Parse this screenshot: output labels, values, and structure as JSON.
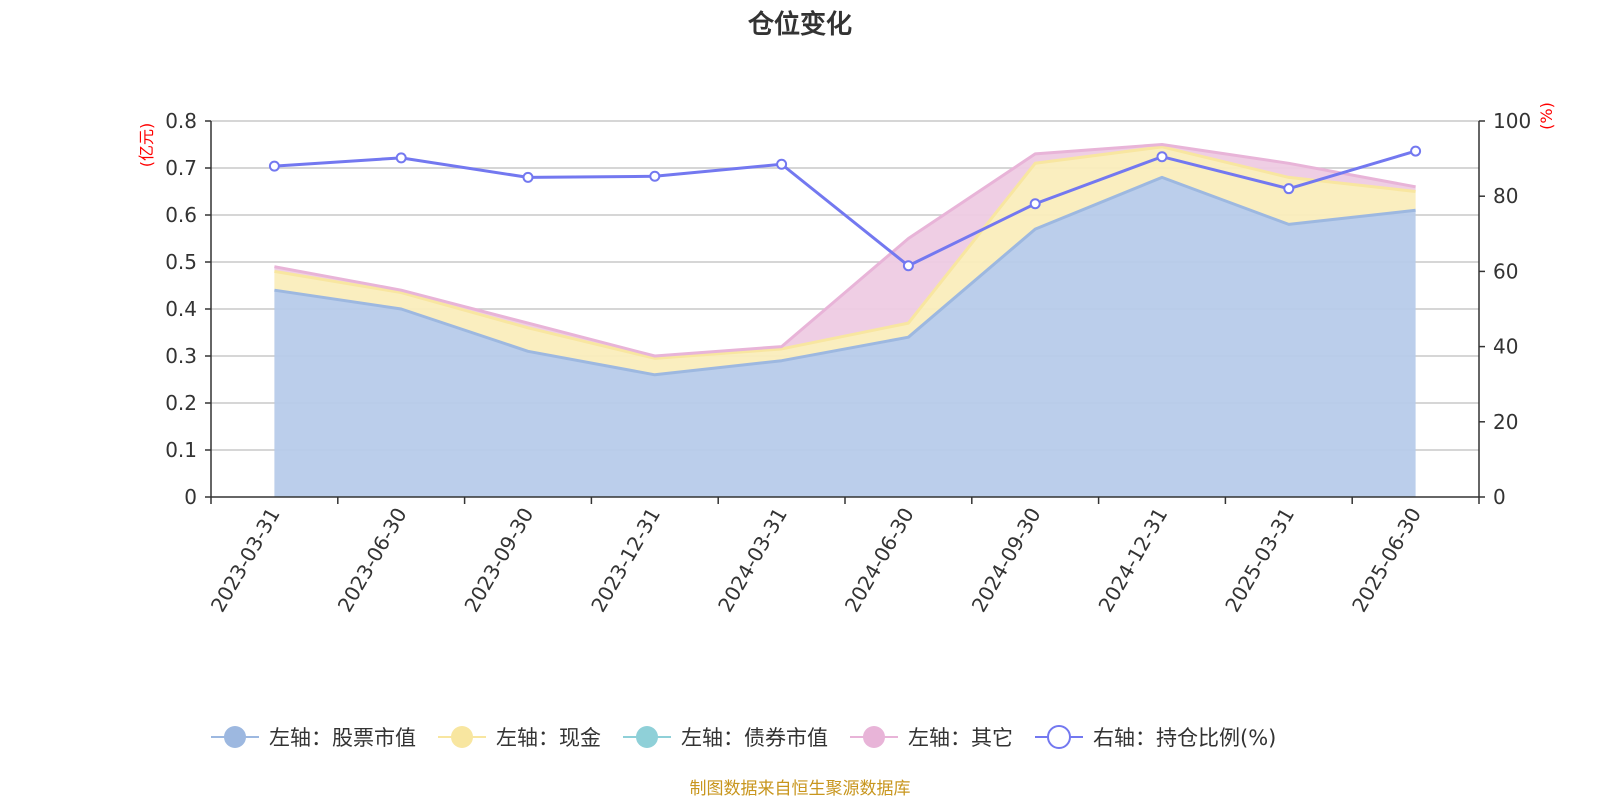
{
  "chart_data": {
    "type": "area",
    "title": "仓位变化",
    "categories": [
      "2023-03-31",
      "2023-06-30",
      "2023-09-30",
      "2023-12-31",
      "2024-03-31",
      "2024-06-30",
      "2024-09-30",
      "2024-12-31",
      "2025-03-31",
      "2025-06-30"
    ],
    "left_axis": {
      "unit": "(亿元)",
      "ylim": [
        0,
        0.8
      ],
      "ticks": [
        "0",
        "0.1",
        "0.2",
        "0.3",
        "0.4",
        "0.5",
        "0.6",
        "0.7",
        "0.8"
      ]
    },
    "right_axis": {
      "unit": "(%)",
      "ylim": [
        0,
        100
      ],
      "ticks": [
        "0",
        "20",
        "40",
        "60",
        "80",
        "100"
      ]
    },
    "series": [
      {
        "name": "左轴：股票市值",
        "axis": "left",
        "stacked": true,
        "color": "#9db8e0",
        "fill": "#b7cbea",
        "values": [
          0.44,
          0.4,
          0.31,
          0.26,
          0.29,
          0.34,
          0.57,
          0.68,
          0.58,
          0.61
        ]
      },
      {
        "name": "左轴：现金",
        "axis": "left",
        "stacked": true,
        "color": "#f8e6a0",
        "fill": "#faedbc",
        "values": [
          0.04,
          0.035,
          0.05,
          0.035,
          0.025,
          0.03,
          0.14,
          0.065,
          0.1,
          0.04
        ]
      },
      {
        "name": "左轴：债券市值",
        "axis": "left",
        "stacked": true,
        "color": "#8fd0d8",
        "fill": "#b5e0e6",
        "values": [
          0,
          0,
          0,
          0,
          0,
          0,
          0,
          0,
          0,
          0
        ]
      },
      {
        "name": "左轴：其它",
        "axis": "left",
        "stacked": true,
        "color": "#e8b4d8",
        "fill": "#eecbe3",
        "values": [
          0.01,
          0.005,
          0.01,
          0.005,
          0.005,
          0.18,
          0.02,
          0.005,
          0.03,
          0.01
        ]
      },
      {
        "name": "右轴：持仓比例(%)",
        "axis": "right",
        "type": "line",
        "color": "#7378f0",
        "values": [
          88.0,
          90.2,
          85.0,
          85.3,
          88.5,
          61.5,
          78.0,
          90.5,
          82.0,
          92.0
        ]
      }
    ],
    "legend_position": "bottom",
    "grid": true
  },
  "footer": {
    "source": "制图数据来自恒生聚源数据库"
  }
}
